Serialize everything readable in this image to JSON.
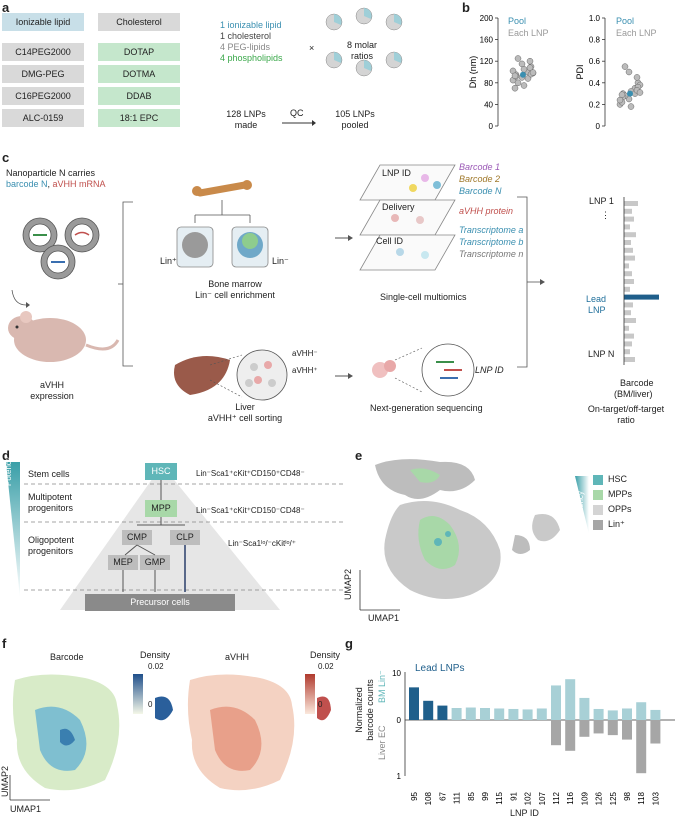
{
  "panel_a": {
    "label": "a",
    "col1_header": "Ionizable lipid",
    "col1_items": [
      "C14PEG2000",
      "DMG-PEG",
      "C16PEG2000",
      "ALC-0159"
    ],
    "col2_header": "Cholesterol",
    "col2_items": [
      "DOTAP",
      "DOTMA",
      "DDAB",
      "18:1 EPC"
    ],
    "recipe": [
      "1 ionizable lipid",
      "1 cholesterol",
      "4 PEG-lipids",
      "4 phospholipids"
    ],
    "times": "×",
    "molar": "8 molar ratios",
    "made": "128 LNPs made",
    "qc": "QC",
    "pooled": "105 LNPs pooled"
  },
  "panel_b": {
    "label": "b",
    "legend_pool": "Pool",
    "legend_each": "Each LNP",
    "colors": {
      "pool": "#3a8fb0",
      "each": "#999999"
    }
  },
  "panel_c": {
    "label": "c",
    "carries_line1": "Nanoparticle N carries",
    "carries_barcode": "barcode N",
    "carries_mrna": "aVHH mRNA",
    "mouse_label": "aVHH expression",
    "lin_plus": "Lin⁺",
    "lin_minus": "Lin⁻",
    "bm_label_1": "Bone marrow",
    "bm_label_2": "Lin⁻ cell enrichment",
    "liver_label_1": "Liver",
    "liver_label_2": "aVHH⁺ cell sorting",
    "avhh_minus": "aVHH⁻",
    "avhh_plus": "aVHH⁺",
    "layers": [
      "LNP ID",
      "Delivery",
      "Cell ID"
    ],
    "barcodes": [
      "Barcode 1",
      "Barcode 2",
      "Barcode N"
    ],
    "protein": "aVHH protein",
    "transcriptomes": [
      "Transcriptome a",
      "Transcriptome b",
      "Transcriptome n"
    ],
    "multiomics": "Single-cell multiomics",
    "lnp_id": "LNP ID",
    "ngs": "Next-generation sequencing",
    "lnp1": "LNP 1",
    "dots": "⋮",
    "lead1": "Lead",
    "lead2": "LNP",
    "lnpN": "LNP N",
    "barcode_axis_1": "Barcode",
    "barcode_axis_2": "(BM/liver)",
    "ratio_1": "On-target/off-target",
    "ratio_2": "ratio"
  },
  "panel_d": {
    "label": "d",
    "potency": "Potency",
    "rows": [
      "Stem cells",
      "Multipotent progenitors",
      "Oligopotent progenitors"
    ],
    "cells": {
      "hsc": "HSC",
      "mpp": "MPP",
      "cmp": "CMP",
      "clp": "CLP",
      "mep": "MEP",
      "gmp": "GMP",
      "precursor": "Precursor cells"
    },
    "markers": [
      "Lin⁻Sca1⁺cKit⁺CD150⁺CD48⁻",
      "Lin⁻Sca1⁺cKit⁺CD150⁻CD48⁻",
      "Lin⁻Sca1ˡᵒ/⁻cKitˡᵒ/⁺"
    ]
  },
  "panel_e": {
    "label": "e",
    "potency": "Potency",
    "legend": [
      {
        "name": "HSC",
        "color": "#5fb6b8"
      },
      {
        "name": "MPPs",
        "color": "#a8d8a8"
      },
      {
        "name": "OPPs",
        "color": "#d4d4d4"
      },
      {
        "name": "Lin⁺",
        "color": "#a6a6a6"
      }
    ],
    "umap1": "UMAP1",
    "umap2": "UMAP2"
  },
  "panel_f": {
    "label": "f",
    "title_barcode": "Barcode",
    "title_avhh": "aVHH",
    "density": "Density",
    "max": "0.02",
    "min": "0",
    "umap1": "UMAP1",
    "umap2": "UMAP2"
  },
  "panel_g": {
    "label": "g",
    "lead_label": "Lead LNPs",
    "ylabel_1": "Normalized",
    "ylabel_2": "barcode counts",
    "bm": "BM Lin⁻",
    "liver": "Liver EC",
    "xlabel": "LNP ID",
    "ticks_top": [
      "10",
      "0"
    ],
    "tick_bottom": "1"
  },
  "chart_data": [
    {
      "type": "scatter",
      "ylabel": "Dh (nm)",
      "ylim": [
        0,
        200
      ],
      "yticks": [
        "0",
        "40",
        "80",
        "120",
        "160",
        "200"
      ],
      "series": [
        {
          "name": "Pool",
          "values": [
            95
          ]
        },
        {
          "name": "Each LNP",
          "values": [
            95,
            90,
            100,
            85,
            110,
            80,
            105,
            120,
            70,
            98,
            92,
            115,
            88,
            102,
            96,
            125,
            75,
            108,
            93,
            99
          ]
        }
      ]
    },
    {
      "type": "scatter",
      "ylabel": "PDI",
      "ylim": [
        0,
        1.0
      ],
      "yticks": [
        "0",
        "0.2",
        "0.4",
        "0.6",
        "0.8",
        "1.0"
      ],
      "series": [
        {
          "name": "Pool",
          "values": [
            0.3
          ]
        },
        {
          "name": "Each LNP",
          "values": [
            0.3,
            0.25,
            0.35,
            0.2,
            0.4,
            0.28,
            0.32,
            0.45,
            0.22,
            0.38,
            0.27,
            0.5,
            0.3,
            0.24,
            0.36,
            0.55,
            0.18,
            0.33,
            0.29,
            0.31
          ]
        }
      ]
    },
    {
      "type": "bar",
      "categories": [
        "95",
        "108",
        "67",
        "111",
        "85",
        "99",
        "115",
        "91",
        "102",
        "107",
        "112",
        "116",
        "109",
        "126",
        "125",
        "98",
        "118",
        "103"
      ],
      "series": [
        {
          "name": "BM Lin⁻",
          "values": [
            6.8,
            4.0,
            3.0,
            2.5,
            2.6,
            2.5,
            2.4,
            2.3,
            2.2,
            2.4,
            7.2,
            8.5,
            4.6,
            2.3,
            2.0,
            2.4,
            3.7,
            2.1
          ]
        },
        {
          "name": "Liver EC",
          "values": [
            0,
            0,
            0,
            0,
            0,
            0,
            0,
            0,
            0,
            0,
            0.45,
            0.55,
            0.3,
            0.24,
            0.27,
            0.35,
            0.95,
            0.42
          ]
        }
      ],
      "lead": [
        "95",
        "108",
        "67"
      ],
      "colors": {
        "lead": "#1f5f8b",
        "bm": "#a8d0d6",
        "liver": "#a6a6a6"
      }
    }
  ]
}
